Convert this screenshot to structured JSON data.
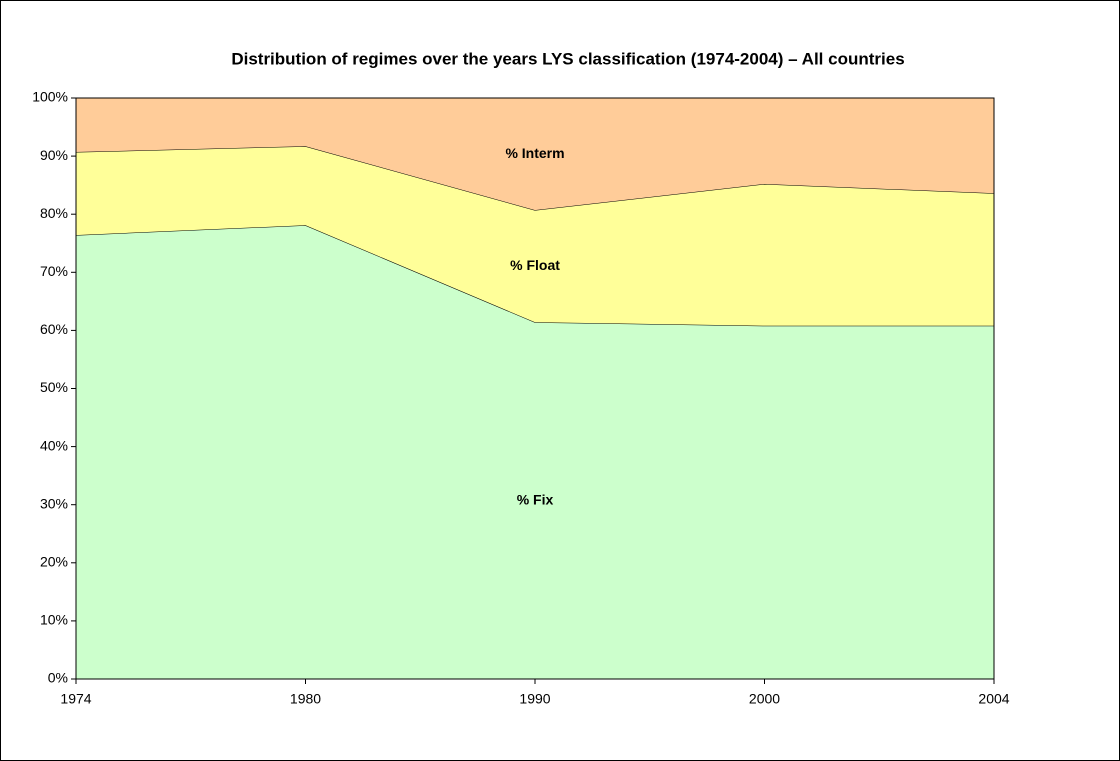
{
  "chart_data": {
    "type": "stacked_area",
    "title": "Distribution of regimes over the years LYS classification (1974-2004) – All countries",
    "categories": [
      "1974",
      "1980",
      "1990",
      "2000",
      "2004"
    ],
    "series": [
      {
        "name": "% Fix",
        "color": "#ccffcc",
        "values": [
          76.4,
          78.1,
          61.4,
          60.8,
          60.8
        ]
      },
      {
        "name": "% Float",
        "color": "#ffff99",
        "values": [
          14.3,
          13.6,
          19.3,
          24.4,
          22.8
        ]
      },
      {
        "name": "% Interm",
        "color": "#ffcc99",
        "values": [
          9.3,
          8.3,
          19.3,
          14.8,
          16.4
        ]
      }
    ],
    "ylim": [
      0,
      100
    ],
    "yticks": [
      {
        "value": 0,
        "label": "0%"
      },
      {
        "value": 10,
        "label": "10%"
      },
      {
        "value": 20,
        "label": "20%"
      },
      {
        "value": 30,
        "label": "30%"
      },
      {
        "value": 40,
        "label": "40%"
      },
      {
        "value": 50,
        "label": "50%"
      },
      {
        "value": 60,
        "label": "60%"
      },
      {
        "value": 70,
        "label": "70%"
      },
      {
        "value": 80,
        "label": "80%"
      },
      {
        "value": 90,
        "label": "90%"
      },
      {
        "value": 100,
        "label": "100%"
      }
    ],
    "grid": false
  }
}
